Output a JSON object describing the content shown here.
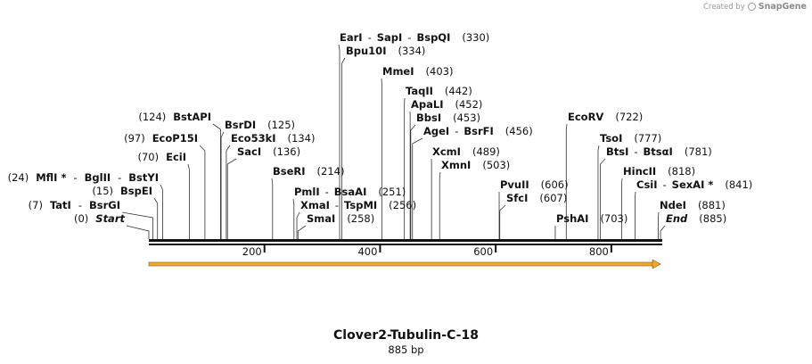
{
  "credit": {
    "prefix": "Created by",
    "brand": "SnapGene"
  },
  "map": {
    "name": "Clover2-Tubulin-C-18",
    "length_label": "885 bp",
    "length": 885,
    "ticks": [
      {
        "pos": 200,
        "label": "200"
      },
      {
        "pos": 400,
        "label": "400"
      },
      {
        "pos": 600,
        "label": "600"
      },
      {
        "pos": 800,
        "label": "800"
      }
    ],
    "feature": {
      "name": "Clover2-Tubulin arrow",
      "start": 1,
      "end": 885,
      "color": "#f0a830"
    },
    "sites": [
      {
        "pos": 0,
        "label_side": "left",
        "num": "(0)",
        "parts": [
          {
            "t": "Start",
            "i": true
          }
        ]
      },
      {
        "pos": 7,
        "label_side": "left",
        "num": "(7)",
        "parts": [
          {
            "t": "TatI"
          },
          {
            "t": "-",
            "s": true
          },
          {
            "t": "BsrGI"
          }
        ]
      },
      {
        "pos": 15,
        "label_side": "left",
        "num": "(15)",
        "parts": [
          {
            "t": "BspEI"
          }
        ]
      },
      {
        "pos": 24,
        "label_side": "left",
        "num": "(24)",
        "parts": [
          {
            "t": "MflI *"
          },
          {
            "t": "-",
            "s": true
          },
          {
            "t": "BglII"
          },
          {
            "t": "-",
            "s": true
          },
          {
            "t": "BstYI"
          }
        ]
      },
      {
        "pos": 70,
        "label_side": "left",
        "num": "(70)",
        "parts": [
          {
            "t": "EciI"
          }
        ]
      },
      {
        "pos": 97,
        "label_side": "left",
        "num": "(97)",
        "parts": [
          {
            "t": "EcoP15I"
          }
        ]
      },
      {
        "pos": 124,
        "label_side": "left",
        "num": "(124)",
        "parts": [
          {
            "t": "BstAPI"
          }
        ]
      },
      {
        "pos": 125,
        "label_side": "right",
        "num": "(125)",
        "parts": [
          {
            "t": "BsrDI"
          }
        ]
      },
      {
        "pos": 134,
        "label_side": "right",
        "num": "(134)",
        "parts": [
          {
            "t": "Eco53kI"
          }
        ]
      },
      {
        "pos": 136,
        "label_side": "right",
        "num": "(136)",
        "parts": [
          {
            "t": "SacI"
          }
        ]
      },
      {
        "pos": 214,
        "label_side": "right",
        "num": "(214)",
        "parts": [
          {
            "t": "BseRI"
          }
        ]
      },
      {
        "pos": 251,
        "label_side": "right",
        "num": "(251)",
        "parts": [
          {
            "t": "PmlI"
          },
          {
            "t": "-",
            "s": true
          },
          {
            "t": "BsaAI"
          }
        ]
      },
      {
        "pos": 256,
        "label_side": "right",
        "num": "(256)",
        "parts": [
          {
            "t": "XmaI"
          },
          {
            "t": "-",
            "s": true
          },
          {
            "t": "TspMI"
          }
        ]
      },
      {
        "pos": 258,
        "label_side": "right",
        "num": "(258)",
        "parts": [
          {
            "t": "SmaI"
          }
        ]
      },
      {
        "pos": 330,
        "label_side": "right",
        "num": "(330)",
        "parts": [
          {
            "t": "EarI"
          },
          {
            "t": "-",
            "s": true
          },
          {
            "t": "SapI"
          },
          {
            "t": "-",
            "s": true
          },
          {
            "t": "BspQI"
          }
        ]
      },
      {
        "pos": 334,
        "label_side": "right",
        "num": "(334)",
        "parts": [
          {
            "t": "Bpu10I"
          }
        ]
      },
      {
        "pos": 403,
        "label_side": "right",
        "num": "(403)",
        "parts": [
          {
            "t": "MmeI"
          }
        ]
      },
      {
        "pos": 442,
        "label_side": "right",
        "num": "(442)",
        "parts": [
          {
            "t": "TaqII"
          }
        ]
      },
      {
        "pos": 452,
        "label_side": "right",
        "num": "(452)",
        "parts": [
          {
            "t": "ApaLI"
          }
        ]
      },
      {
        "pos": 453,
        "label_side": "right",
        "num": "(453)",
        "parts": [
          {
            "t": "BbsI"
          }
        ]
      },
      {
        "pos": 456,
        "label_side": "right",
        "num": "(456)",
        "parts": [
          {
            "t": "AgeI"
          },
          {
            "t": "-",
            "s": true
          },
          {
            "t": "BsrFI"
          }
        ]
      },
      {
        "pos": 489,
        "label_side": "right",
        "num": "(489)",
        "parts": [
          {
            "t": "XcmI"
          }
        ]
      },
      {
        "pos": 503,
        "label_side": "right",
        "num": "(503)",
        "parts": [
          {
            "t": "XmnI"
          }
        ]
      },
      {
        "pos": 606,
        "label_side": "right",
        "num": "(606)",
        "parts": [
          {
            "t": "PvuII"
          }
        ]
      },
      {
        "pos": 607,
        "label_side": "right",
        "num": "(607)",
        "parts": [
          {
            "t": "SfcI"
          }
        ]
      },
      {
        "pos": 703,
        "label_side": "right",
        "num": "(703)",
        "parts": [
          {
            "t": "PshAI"
          }
        ]
      },
      {
        "pos": 722,
        "label_side": "right",
        "num": "(722)",
        "parts": [
          {
            "t": "EcoRV"
          }
        ]
      },
      {
        "pos": 777,
        "label_side": "right",
        "num": "(777)",
        "parts": [
          {
            "t": "TsoI"
          }
        ]
      },
      {
        "pos": 781,
        "label_side": "right",
        "num": "(781)",
        "parts": [
          {
            "t": "BtsI"
          },
          {
            "t": "-",
            "s": true
          },
          {
            "t": "BtsαI"
          }
        ]
      },
      {
        "pos": 818,
        "label_side": "right",
        "num": "(818)",
        "parts": [
          {
            "t": "HincII"
          }
        ]
      },
      {
        "pos": 841,
        "label_side": "right",
        "num": "(841)",
        "parts": [
          {
            "t": "CsiI"
          },
          {
            "t": "-",
            "s": true
          },
          {
            "t": "SexAI *"
          }
        ]
      },
      {
        "pos": 881,
        "label_side": "right",
        "num": "(881)",
        "parts": [
          {
            "t": "NdeI"
          }
        ]
      },
      {
        "pos": 885,
        "label_side": "right",
        "num": "(885)",
        "parts": [
          {
            "t": "End",
            "i": true
          }
        ]
      }
    ]
  }
}
